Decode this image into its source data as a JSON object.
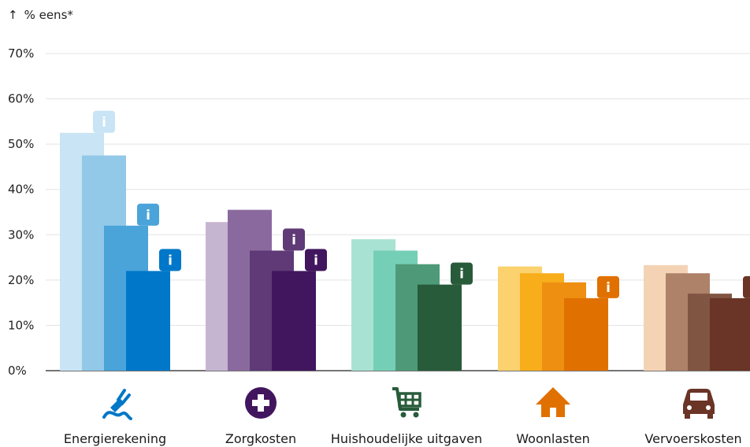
{
  "chart_data": {
    "type": "bar",
    "ylabel": "% eens*",
    "ylim": [
      0,
      70
    ],
    "yticks": [
      "0%",
      "10%",
      "20%",
      "30%",
      "40%",
      "50%",
      "60%",
      "70%"
    ],
    "ytick_values": [
      0,
      10,
      20,
      30,
      40,
      50,
      60,
      70
    ],
    "grid": true,
    "categories": [
      "Energierekening",
      "Zorgkosten",
      "Huishoudelijke uitgaven",
      "Woonlasten",
      "Vervoerskosten"
    ],
    "category_icons": [
      "plug-icon",
      "medical-cross-icon",
      "shopping-cart-icon",
      "house-icon",
      "car-icon"
    ],
    "category_colors": [
      [
        "#c9e4f4",
        "#92c9e8",
        "#4aa3d9",
        "#0077c8"
      ],
      [
        "#c6b5d1",
        "#8a6a9e",
        "#5f3a77",
        "#42165e"
      ],
      [
        "#a8e2d2",
        "#74cfb6",
        "#4e9a78",
        "#285b3a"
      ],
      [
        "#fbd26e",
        "#f8ae1b",
        "#ee8f12",
        "#e07100"
      ],
      [
        "#f4d3b5",
        "#ae8169",
        "#805642",
        "#6a3426"
      ]
    ],
    "icon_colors": [
      "#0077c8",
      "#42165e",
      "#285b3a",
      "#e07100",
      "#6a3426"
    ],
    "values": [
      [
        52.5,
        47.5,
        32.0,
        22.0
      ],
      [
        32.8,
        35.5,
        26.5,
        22.0
      ],
      [
        29.0,
        26.5,
        23.5,
        19.0
      ],
      [
        23.0,
        21.5,
        19.5,
        16.0
      ],
      [
        23.3,
        21.5,
        17.0,
        16.0
      ]
    ],
    "info_markers": [
      [
        0,
        2,
        3
      ],
      [
        2,
        3
      ],
      [
        3
      ],
      [
        3
      ],
      [
        3
      ]
    ],
    "info_label": "i"
  }
}
